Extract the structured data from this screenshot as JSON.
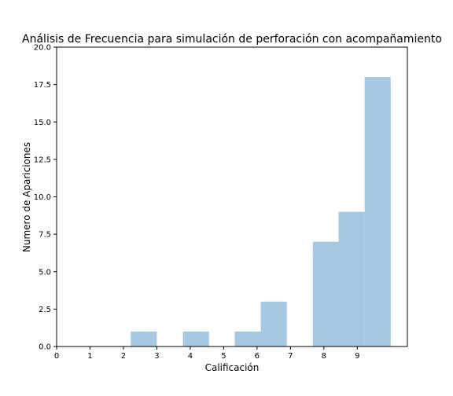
{
  "chart_data": {
    "type": "bar",
    "title": "Análisis de Frecuencia para simulación de perforación con acompañamiento",
    "xlabel": "Calificación",
    "ylabel": "Numero de Apariciones",
    "xlim": [
      0,
      10.5
    ],
    "ylim": [
      0,
      20
    ],
    "x_ticks": [
      "0",
      "1",
      "2",
      "3",
      "4",
      "5",
      "6",
      "7",
      "8",
      "9"
    ],
    "y_ticks": [
      "0.0",
      "2.5",
      "5.0",
      "7.5",
      "10.0",
      "12.5",
      "15.0",
      "17.5",
      "20.0"
    ],
    "grid": false,
    "bar_color": "#a6c8e0",
    "bins": [
      {
        "start": 2.22,
        "end": 3.0,
        "value": 1
      },
      {
        "start": 3.78,
        "end": 4.56,
        "value": 1
      },
      {
        "start": 5.33,
        "end": 6.11,
        "value": 1
      },
      {
        "start": 6.11,
        "end": 6.89,
        "value": 3
      },
      {
        "start": 7.67,
        "end": 8.44,
        "value": 7
      },
      {
        "start": 8.44,
        "end": 9.22,
        "value": 9
      },
      {
        "start": 9.22,
        "end": 10.0,
        "value": 18
      }
    ]
  }
}
